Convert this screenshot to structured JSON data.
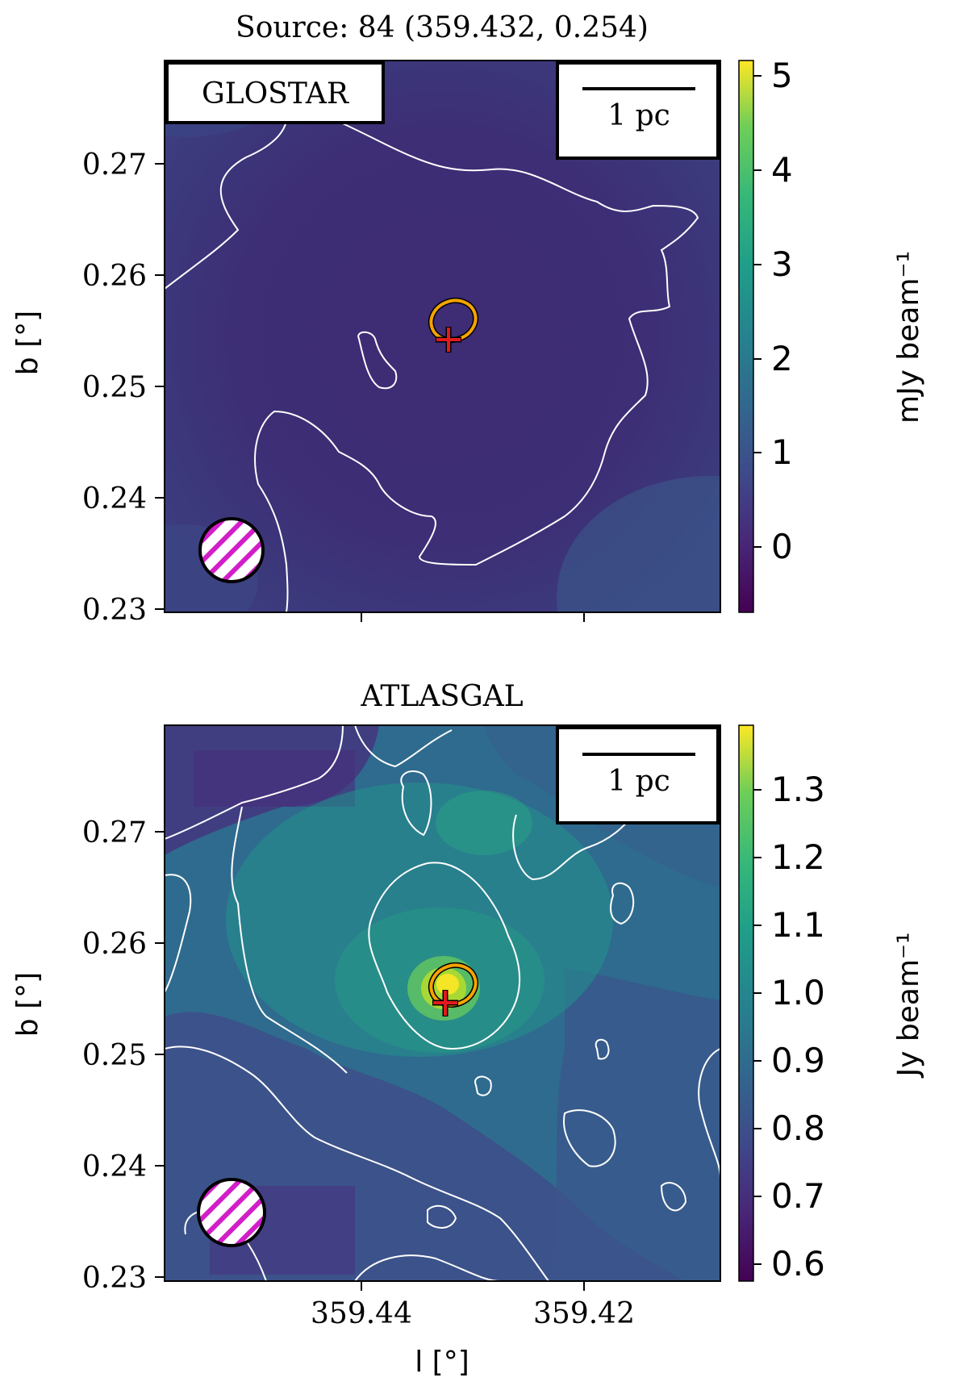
{
  "figure": {
    "title": "Source: 84 (359.432, 0.254)",
    "contour_color": "#ffffff",
    "source_marker": {
      "cross_color": "#e31a1c",
      "ellipse_color": "#f5a300",
      "l": 359.432,
      "b": 0.254
    },
    "beam_marker": {
      "color": "#d21ec8",
      "hatch": "diagonal"
    }
  },
  "chart_data": [
    {
      "type": "heatmap",
      "panel_title": "",
      "survey_label": "GLOSTAR",
      "scalebar_label": "1 pc",
      "xlabel": "",
      "ylabel": "b [°]",
      "x_ticks": [
        "",
        ""
      ],
      "y_ticks": [
        "0.27",
        "0.26",
        "0.25",
        "0.24",
        "0.23"
      ],
      "xlim": [
        359.4575,
        359.4075
      ],
      "ylim": [
        0.2295,
        0.2795
      ],
      "colormap": "viridis",
      "colorbar": {
        "label": "mJy beam⁻¹",
        "range": [
          -0.6,
          5.1
        ],
        "ticks": [
          "5",
          "4",
          "3",
          "2",
          "1",
          "0"
        ],
        "tick_values": [
          5,
          4,
          3,
          2,
          1,
          0
        ]
      }
    },
    {
      "type": "heatmap",
      "panel_title": "ATLASGAL",
      "survey_label": "",
      "scalebar_label": "1 pc",
      "xlabel": "l [°]",
      "ylabel": "b [°]",
      "x_ticks": [
        "359.44",
        "359.42"
      ],
      "y_ticks": [
        "0.27",
        "0.26",
        "0.25",
        "0.24",
        "0.23"
      ],
      "xlim": [
        359.4575,
        359.4075
      ],
      "ylim": [
        0.2295,
        0.2795
      ],
      "colormap": "viridis",
      "colorbar": {
        "label": "Jy beam⁻¹",
        "range": [
          0.56,
          1.38
        ],
        "ticks": [
          "1.3",
          "1.2",
          "1.1",
          "1.0",
          "0.9",
          "0.8",
          "0.7",
          "0.6"
        ],
        "tick_values": [
          1.3,
          1.2,
          1.1,
          1.0,
          0.9,
          0.8,
          0.7,
          0.6
        ]
      }
    }
  ]
}
